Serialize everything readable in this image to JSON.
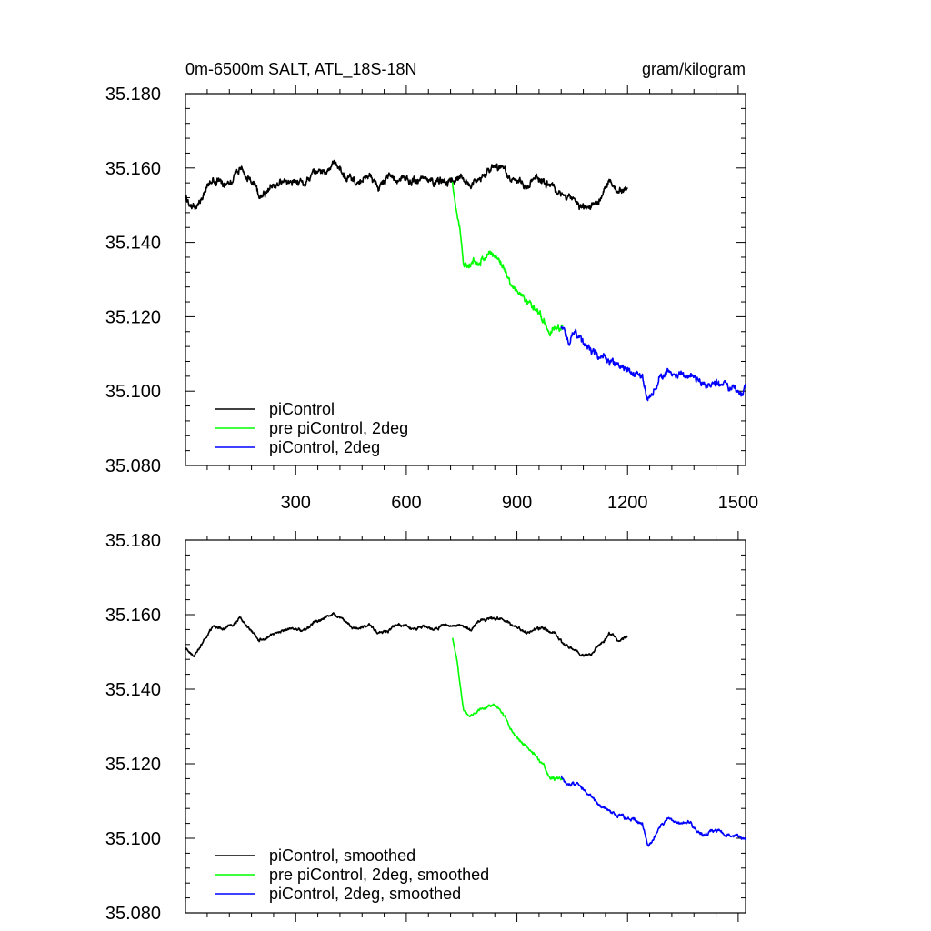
{
  "chart_data": [
    {
      "type": "line",
      "title_left": "0m-6500m SALT, ATL_18S-18N",
      "title_right": "gram/kilogram",
      "xlabel": "",
      "ylabel": "",
      "xlim": [
        1,
        1520
      ],
      "ylim": [
        35.08,
        35.18
      ],
      "xticks": [
        300,
        600,
        900,
        1200,
        1500
      ],
      "xtick_labels": [
        "300",
        "600",
        "900",
        "1200",
        "1500"
      ],
      "yticks": [
        35.08,
        35.1,
        35.12,
        35.14,
        35.16,
        35.18
      ],
      "ytick_labels": [
        "35.080",
        "35.100",
        "35.120",
        "35.140",
        "35.160",
        "35.180"
      ],
      "grid": false,
      "legend_position": "bottom-left",
      "series": [
        {
          "name": "piControl",
          "color": "#000000",
          "x": [
            1,
            25,
            50,
            75,
            100,
            125,
            150,
            175,
            200,
            225,
            250,
            275,
            300,
            325,
            350,
            375,
            400,
            425,
            450,
            475,
            500,
            525,
            550,
            575,
            600,
            625,
            650,
            675,
            700,
            725,
            750,
            775,
            800,
            825,
            850,
            875,
            900,
            925,
            950,
            975,
            1000,
            1025,
            1050,
            1075,
            1100,
            1125,
            1150,
            1175,
            1200
          ],
          "y": [
            35.152,
            35.149,
            35.153,
            35.157,
            35.156,
            35.157,
            35.16,
            35.157,
            35.153,
            35.154,
            35.156,
            35.156,
            35.157,
            35.156,
            35.158,
            35.159,
            35.161,
            35.159,
            35.157,
            35.156,
            35.158,
            35.155,
            35.157,
            35.157,
            35.157,
            35.156,
            35.157,
            35.156,
            35.157,
            35.157,
            35.157,
            35.156,
            35.158,
            35.159,
            35.16,
            35.158,
            35.157,
            35.155,
            35.157,
            35.156,
            35.155,
            35.152,
            35.151,
            35.149,
            35.149,
            35.152,
            35.156,
            35.153,
            35.155
          ],
          "noise": 0.0013
        },
        {
          "name": "pre piControl, 2deg",
          "color": "#00ff00",
          "x": [
            725,
            740,
            755,
            770,
            790,
            810,
            830,
            850,
            870,
            890,
            910,
            930,
            950,
            970,
            990,
            1010,
            1025
          ],
          "y": [
            35.156,
            35.147,
            35.135,
            35.133,
            35.135,
            35.136,
            35.137,
            35.136,
            35.132,
            35.128,
            35.126,
            35.124,
            35.122,
            35.12,
            35.116,
            35.117,
            35.117
          ],
          "noise": 0.0012
        },
        {
          "name": "piControl, 2deg",
          "color": "#0000ff",
          "x": [
            1020,
            1040,
            1060,
            1080,
            1100,
            1120,
            1140,
            1160,
            1180,
            1200,
            1220,
            1240,
            1255,
            1270,
            1290,
            1310,
            1330,
            1350,
            1370,
            1390,
            1410,
            1430,
            1450,
            1470,
            1490,
            1510,
            1520
          ],
          "y": [
            35.117,
            35.114,
            35.116,
            35.113,
            35.111,
            35.109,
            35.109,
            35.107,
            35.106,
            35.105,
            35.105,
            35.104,
            35.098,
            35.1,
            35.104,
            35.106,
            35.104,
            35.105,
            35.104,
            35.103,
            35.101,
            35.103,
            35.102,
            35.101,
            35.101,
            35.1,
            35.101
          ],
          "noise": 0.0013
        }
      ]
    },
    {
      "type": "line",
      "xlabel": "",
      "ylabel": "",
      "xlim": [
        1,
        1520
      ],
      "ylim": [
        35.08,
        35.18
      ],
      "xticks": [
        300,
        600,
        900,
        1200,
        1500
      ],
      "yticks": [
        35.08,
        35.1,
        35.12,
        35.14,
        35.16,
        35.18
      ],
      "ytick_labels": [
        "35.080",
        "35.100",
        "35.120",
        "35.140",
        "35.160",
        "35.180"
      ],
      "grid": false,
      "legend_position": "bottom-left",
      "series": [
        {
          "name": "piControl, smoothed",
          "color": "#000000",
          "x": [
            1,
            25,
            50,
            75,
            100,
            125,
            150,
            175,
            200,
            225,
            250,
            275,
            300,
            325,
            350,
            375,
            400,
            425,
            450,
            475,
            500,
            525,
            550,
            575,
            600,
            625,
            650,
            675,
            700,
            725,
            750,
            775,
            800,
            825,
            850,
            875,
            900,
            925,
            950,
            975,
            1000,
            1025,
            1050,
            1075,
            1100,
            1125,
            1150,
            1175,
            1200
          ],
          "y": [
            35.151,
            35.149,
            35.153,
            35.157,
            35.156,
            35.157,
            35.159,
            35.156,
            35.153,
            35.154,
            35.155,
            35.156,
            35.156,
            35.156,
            35.158,
            35.159,
            35.16,
            35.159,
            35.157,
            35.156,
            35.157,
            35.155,
            35.156,
            35.157,
            35.157,
            35.156,
            35.157,
            35.156,
            35.157,
            35.157,
            35.157,
            35.156,
            35.158,
            35.159,
            35.159,
            35.158,
            35.157,
            35.155,
            35.156,
            35.156,
            35.155,
            35.152,
            35.151,
            35.149,
            35.149,
            35.152,
            35.155,
            35.153,
            35.154
          ],
          "noise": 0.0005
        },
        {
          "name": "pre piControl, 2deg, smoothed",
          "color": "#00ff00",
          "x": [
            725,
            740,
            755,
            770,
            790,
            810,
            830,
            850,
            870,
            890,
            910,
            930,
            950,
            970,
            990,
            1010,
            1025
          ],
          "y": [
            35.154,
            35.146,
            35.135,
            35.133,
            35.134,
            35.135,
            35.136,
            35.135,
            35.132,
            35.128,
            35.126,
            35.124,
            35.122,
            35.12,
            35.116,
            35.116,
            35.116
          ],
          "noise": 0.0005
        },
        {
          "name": "piControl, 2deg, smoothed",
          "color": "#0000ff",
          "x": [
            1020,
            1040,
            1060,
            1080,
            1100,
            1120,
            1140,
            1160,
            1180,
            1200,
            1220,
            1240,
            1255,
            1270,
            1290,
            1310,
            1330,
            1350,
            1370,
            1390,
            1410,
            1430,
            1450,
            1470,
            1490,
            1510,
            1520
          ],
          "y": [
            35.117,
            35.114,
            35.115,
            35.113,
            35.111,
            35.109,
            35.108,
            35.107,
            35.106,
            35.105,
            35.105,
            35.104,
            35.098,
            35.1,
            35.103,
            35.105,
            35.104,
            35.104,
            35.104,
            35.102,
            35.101,
            35.102,
            35.102,
            35.101,
            35.101,
            35.1,
            35.1
          ],
          "noise": 0.0006
        }
      ]
    }
  ]
}
